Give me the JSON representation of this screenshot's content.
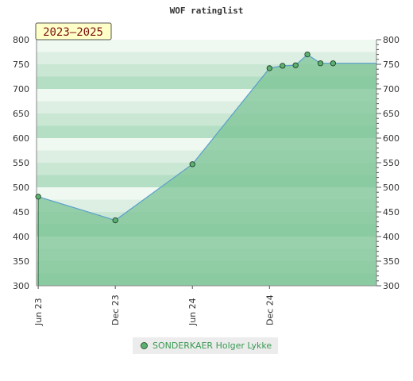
{
  "chart_data": {
    "type": "area",
    "title": "WOF ratinglist",
    "badge": "2023–2025",
    "ylim": [
      300,
      800
    ],
    "yticks": [
      300,
      350,
      400,
      450,
      500,
      550,
      600,
      650,
      700,
      750,
      800
    ],
    "x_range": [
      "2023-05-28",
      "2025-08-12"
    ],
    "xticks": [
      {
        "date": "2023-06-01",
        "label": "Jun 23"
      },
      {
        "date": "2023-12-01",
        "label": "Dec 23"
      },
      {
        "date": "2024-06-01",
        "label": "Jun 24"
      },
      {
        "date": "2024-12-01",
        "label": "Dec 24"
      }
    ],
    "series": [
      {
        "name": "SONDERKAER Holger Lykke",
        "points": [
          {
            "x": "2023-06-01",
            "y": 481
          },
          {
            "x": "2023-12-01",
            "y": 433
          },
          {
            "x": "2024-06-01",
            "y": 547
          },
          {
            "x": "2024-12-01",
            "y": 742
          },
          {
            "x": "2025-01-01",
            "y": 747
          },
          {
            "x": "2025-02-01",
            "y": 748
          },
          {
            "x": "2025-03-01",
            "y": 770
          },
          {
            "x": "2025-04-01",
            "y": 752
          },
          {
            "x": "2025-05-01",
            "y": 752
          }
        ]
      }
    ],
    "colors": {
      "area": "#7cc495",
      "line": "#5b9fcc",
      "marker": "#5cb070",
      "badge_bg": "#ffffc8"
    }
  }
}
